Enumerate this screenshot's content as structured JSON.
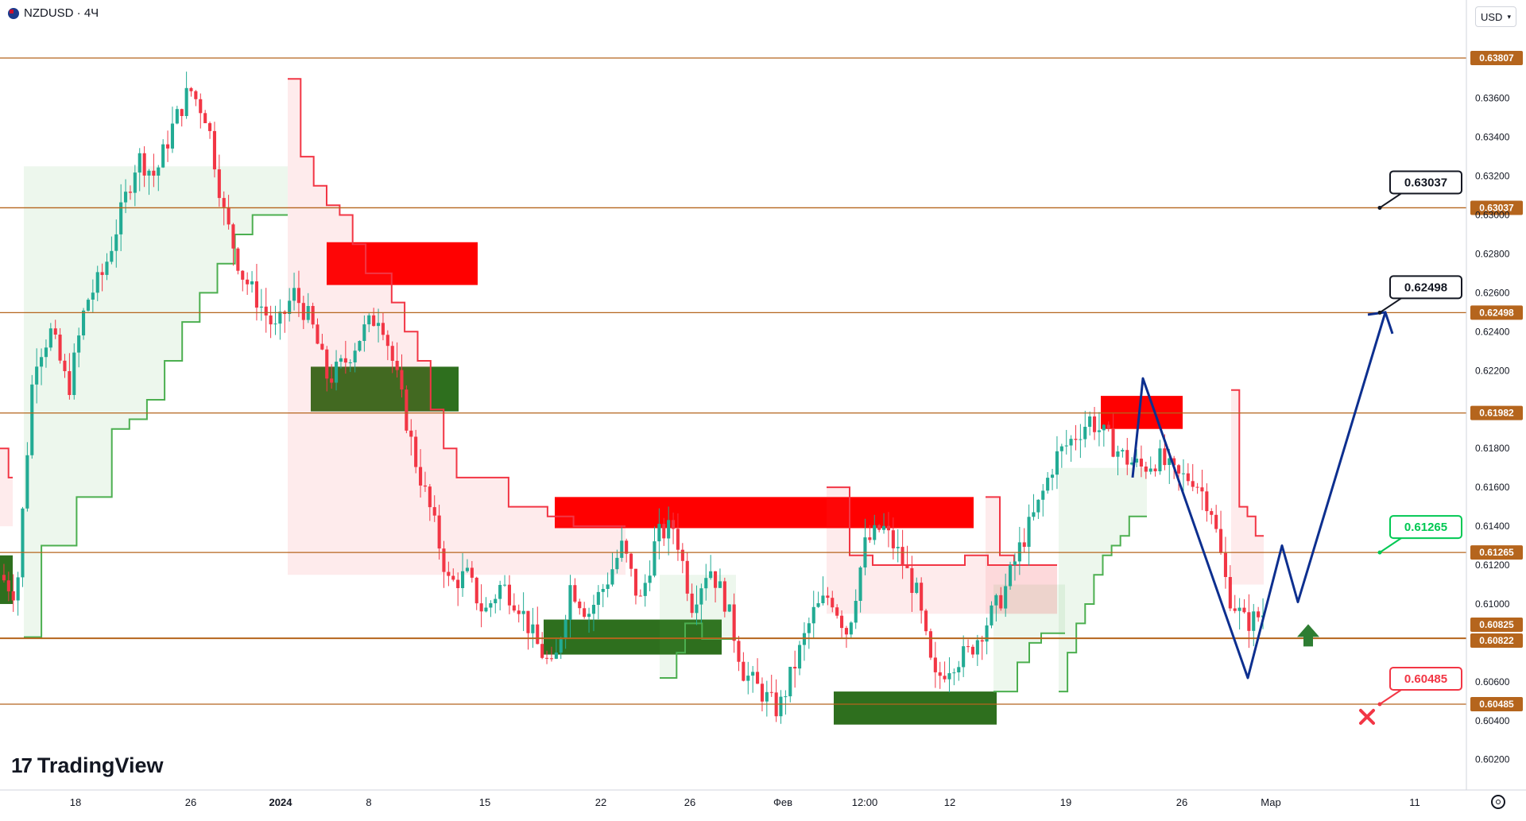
{
  "header": {
    "symbol_label": "NZDUSD · 4Ч"
  },
  "currency_select": {
    "label": "USD"
  },
  "brand": {
    "mark": "17",
    "name": "TradingView"
  },
  "colors": {
    "level_line": "#b5651d",
    "level_badge": "#b5651d",
    "supply_zone": "#ff0000",
    "demand_zone": "#2e6f1e",
    "bull": "#22ab94",
    "bear": "#f23645",
    "trend_down": "#f23645",
    "trend_up": "#4caf50",
    "forecast": "#0d2f8f",
    "target_label_green": "#00c853",
    "target_label_red": "#f23645"
  },
  "chart_data": {
    "type": "candlestick",
    "symbol": "NZDUSD",
    "timeframe": "4Ч",
    "currency": "USD",
    "ylim": [
      0.6012,
      0.6395
    ],
    "y_ticks": [
      "0.63600",
      "0.63400",
      "0.63200",
      "0.63000",
      "0.62800",
      "0.62600",
      "0.62400",
      "0.62200",
      "0.61800",
      "0.61600",
      "0.61400",
      "0.61200",
      "0.61000",
      "0.60600",
      "0.60400",
      "0.60200"
    ],
    "x_ticks": [
      "18",
      "26",
      "2024",
      "8",
      "15",
      "22",
      "26",
      "Фев",
      "12:00",
      "12",
      "19",
      "26",
      "Мар",
      "11"
    ],
    "x_tick_bold": [
      "2024"
    ],
    "levels": [
      {
        "value": 0.63807,
        "label": "0.63807"
      },
      {
        "value": 0.63037,
        "label": "0.63037"
      },
      {
        "value": 0.62498,
        "label": "0.62498"
      },
      {
        "value": 0.61982,
        "label": "0.61982"
      },
      {
        "value": 0.61265,
        "label": "0.61265"
      },
      {
        "value": 0.60825,
        "label": "0.60825"
      },
      {
        "value": 0.60822,
        "label": "0.60822"
      },
      {
        "value": 0.60485,
        "label": "0.60485"
      }
    ],
    "price_callouts": [
      {
        "label": "0.63037",
        "value": 0.63037,
        "style": "black"
      },
      {
        "label": "0.62498",
        "value": 0.62498,
        "style": "black"
      },
      {
        "label": "0.61265",
        "value": 0.61265,
        "style": "green"
      },
      {
        "label": "0.60485",
        "value": 0.60485,
        "style": "red"
      }
    ],
    "supply_zones": [
      {
        "from": 0.6264,
        "to": 0.6286
      },
      {
        "from": 0.6139,
        "to": 0.6155
      },
      {
        "from": 0.619,
        "to": 0.6207
      }
    ],
    "demand_zones": [
      {
        "from": 0.61,
        "to": 0.6125
      },
      {
        "from": 0.6199,
        "to": 0.6222
      },
      {
        "from": 0.6074,
        "to": 0.6092
      },
      {
        "from": 0.6038,
        "to": 0.6055
      }
    ],
    "forecast_path": [
      0.6216,
      0.6165,
      0.6062,
      0.613,
      0.6101,
      0.625
    ],
    "signals": [
      {
        "type": "buy-arrow",
        "value": 0.6088
      },
      {
        "type": "stop-cross",
        "value": 0.6042
      }
    ],
    "trend_stop_segments": [
      {
        "dir": "down",
        "values": [
          0.618,
          0.618,
          0.6165
        ]
      },
      {
        "dir": "up",
        "values": [
          0.6083,
          0.613,
          0.613,
          0.6155,
          0.6155,
          0.619,
          0.6195,
          0.6205,
          0.6225,
          0.6245,
          0.626,
          0.6275,
          0.629,
          0.63,
          0.63
        ]
      },
      {
        "dir": "down",
        "values": [
          0.637,
          0.633,
          0.6315,
          0.6305,
          0.63,
          0.6285,
          0.627,
          0.627,
          0.6255,
          0.624,
          0.6225,
          0.62,
          0.618,
          0.6165,
          0.6165,
          0.6165,
          0.6165,
          0.615,
          0.615,
          0.615,
          0.6145,
          0.6145,
          0.614,
          0.614,
          0.614,
          0.614
        ]
      },
      {
        "dir": "up",
        "values": [
          0.6062,
          0.6062,
          0.6075,
          0.609,
          0.609,
          0.6082,
          0.6082,
          0.6082,
          0.6082
        ]
      },
      {
        "dir": "down",
        "values": [
          0.616,
          0.6125,
          0.612,
          0.612,
          0.612,
          0.612,
          0.6125,
          0.612,
          0.612,
          0.612
        ]
      },
      {
        "dir": "up",
        "values": [
          0.6055,
          0.6055,
          0.607,
          0.608,
          0.6085,
          0.6085
        ]
      },
      {
        "dir": "down",
        "values": [
          0.6155,
          0.6125,
          0.612,
          0.612,
          0.612
        ]
      },
      {
        "dir": "up",
        "values": [
          0.6055,
          0.6075,
          0.609,
          0.61,
          0.6115,
          0.6125,
          0.613,
          0.6135,
          0.6145,
          0.6145
        ]
      },
      {
        "dir": "down",
        "values": [
          0.621,
          0.615,
          0.6145,
          0.6135
        ]
      }
    ],
    "candle_path": [
      0.6115,
      0.6105,
      0.6225,
      0.624,
      0.621,
      0.6255,
      0.627,
      0.63,
      0.633,
      0.632,
      0.6345,
      0.6365,
      0.635,
      0.63,
      0.627,
      0.6255,
      0.624,
      0.626,
      0.6245,
      0.6215,
      0.6225,
      0.624,
      0.625,
      0.6215,
      0.6175,
      0.6145,
      0.611,
      0.6115,
      0.6095,
      0.611,
      0.61,
      0.608,
      0.6065,
      0.611,
      0.6095,
      0.611,
      0.613,
      0.61,
      0.6135,
      0.614,
      0.61,
      0.612,
      0.61,
      0.6065,
      0.6055,
      0.6045,
      0.607,
      0.6095,
      0.6105,
      0.6085,
      0.613,
      0.614,
      0.6125,
      0.6105,
      0.606,
      0.607,
      0.6075,
      0.609,
      0.6105,
      0.613,
      0.615,
      0.6175,
      0.6185,
      0.6195,
      0.6185,
      0.6175,
      0.617,
      0.6175,
      0.6165,
      0.6165,
      0.615,
      0.6105,
      0.609,
      0.6095
    ]
  }
}
